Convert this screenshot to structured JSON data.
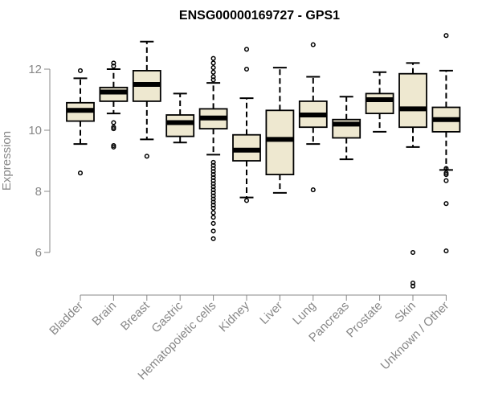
{
  "chart_data": {
    "type": "boxplot",
    "title": "ENSG00000169727 - GPS1",
    "xlabel": "",
    "ylabel": "Expression",
    "ylim": [
      5,
      13.4
    ],
    "yticks": [
      "6",
      "8",
      "10",
      "12"
    ],
    "grid": false,
    "legend": "none",
    "colors": {
      "box_fill": "#eee8d0",
      "box_edge": "#000000",
      "median": "#000000",
      "axis": "#888888",
      "tick_text": "#888888"
    },
    "categories": [
      "Bladder",
      "Brain",
      "Breast",
      "Gastric",
      "Hematopoietic cells",
      "Kidney",
      "Liver",
      "Lung",
      "Pancreas",
      "Prostate",
      "Skin",
      "Unknown / Other"
    ],
    "boxes": [
      {
        "category": "Bladder",
        "whisker_low": 9.55,
        "q1": 10.3,
        "median": 10.65,
        "q3": 10.9,
        "whisker_high": 11.7,
        "outliers": [
          11.95,
          8.6
        ]
      },
      {
        "category": "Brain",
        "whisker_low": 10.55,
        "q1": 10.95,
        "median": 11.25,
        "q3": 11.4,
        "whisker_high": 12.0,
        "outliers": [
          12.1,
          12.2,
          10.25,
          10.1,
          10.05,
          9.5,
          9.45
        ]
      },
      {
        "category": "Breast",
        "whisker_low": 9.7,
        "q1": 10.95,
        "median": 11.5,
        "q3": 11.95,
        "whisker_high": 12.9,
        "outliers": [
          9.15
        ]
      },
      {
        "category": "Gastric",
        "whisker_low": 9.6,
        "q1": 9.8,
        "median": 10.25,
        "q3": 10.5,
        "whisker_high": 11.2,
        "outliers": []
      },
      {
        "category": "Hematopoietic cells",
        "whisker_low": 9.2,
        "q1": 10.05,
        "median": 10.4,
        "q3": 10.7,
        "whisker_high": 11.55,
        "outliers": [
          12.35,
          12.2,
          12.05,
          11.9,
          11.75,
          11.65,
          8.95,
          8.85,
          8.75,
          8.65,
          8.55,
          8.45,
          8.35,
          8.25,
          8.15,
          8.05,
          7.95,
          7.85,
          7.75,
          7.65,
          7.55,
          7.45,
          7.3,
          7.15,
          6.95,
          6.7,
          6.45
        ]
      },
      {
        "category": "Kidney",
        "whisker_low": 7.8,
        "q1": 9.0,
        "median": 9.35,
        "q3": 9.85,
        "whisker_high": 11.05,
        "outliers": [
          12.65,
          12.0,
          7.7
        ]
      },
      {
        "category": "Liver",
        "whisker_low": 7.95,
        "q1": 8.55,
        "median": 9.7,
        "q3": 10.65,
        "whisker_high": 12.05,
        "outliers": []
      },
      {
        "category": "Lung",
        "whisker_low": 9.55,
        "q1": 10.1,
        "median": 10.5,
        "q3": 10.95,
        "whisker_high": 11.75,
        "outliers": [
          12.8,
          8.05
        ]
      },
      {
        "category": "Pancreas",
        "whisker_low": 9.05,
        "q1": 9.75,
        "median": 10.2,
        "q3": 10.35,
        "whisker_high": 11.1,
        "outliers": []
      },
      {
        "category": "Prostate",
        "whisker_low": 9.95,
        "q1": 10.55,
        "median": 11.0,
        "q3": 11.2,
        "whisker_high": 11.9,
        "outliers": []
      },
      {
        "category": "Skin",
        "whisker_low": 9.45,
        "q1": 10.1,
        "median": 10.7,
        "q3": 11.85,
        "whisker_high": 12.2,
        "outliers": [
          6.0,
          5.0,
          4.9
        ]
      },
      {
        "category": "Unknown / Other",
        "whisker_low": 8.7,
        "q1": 9.95,
        "median": 10.35,
        "q3": 10.75,
        "whisker_high": 11.95,
        "outliers": [
          13.1,
          8.75,
          8.6,
          8.55,
          8.35,
          7.6,
          6.05
        ]
      }
    ]
  }
}
